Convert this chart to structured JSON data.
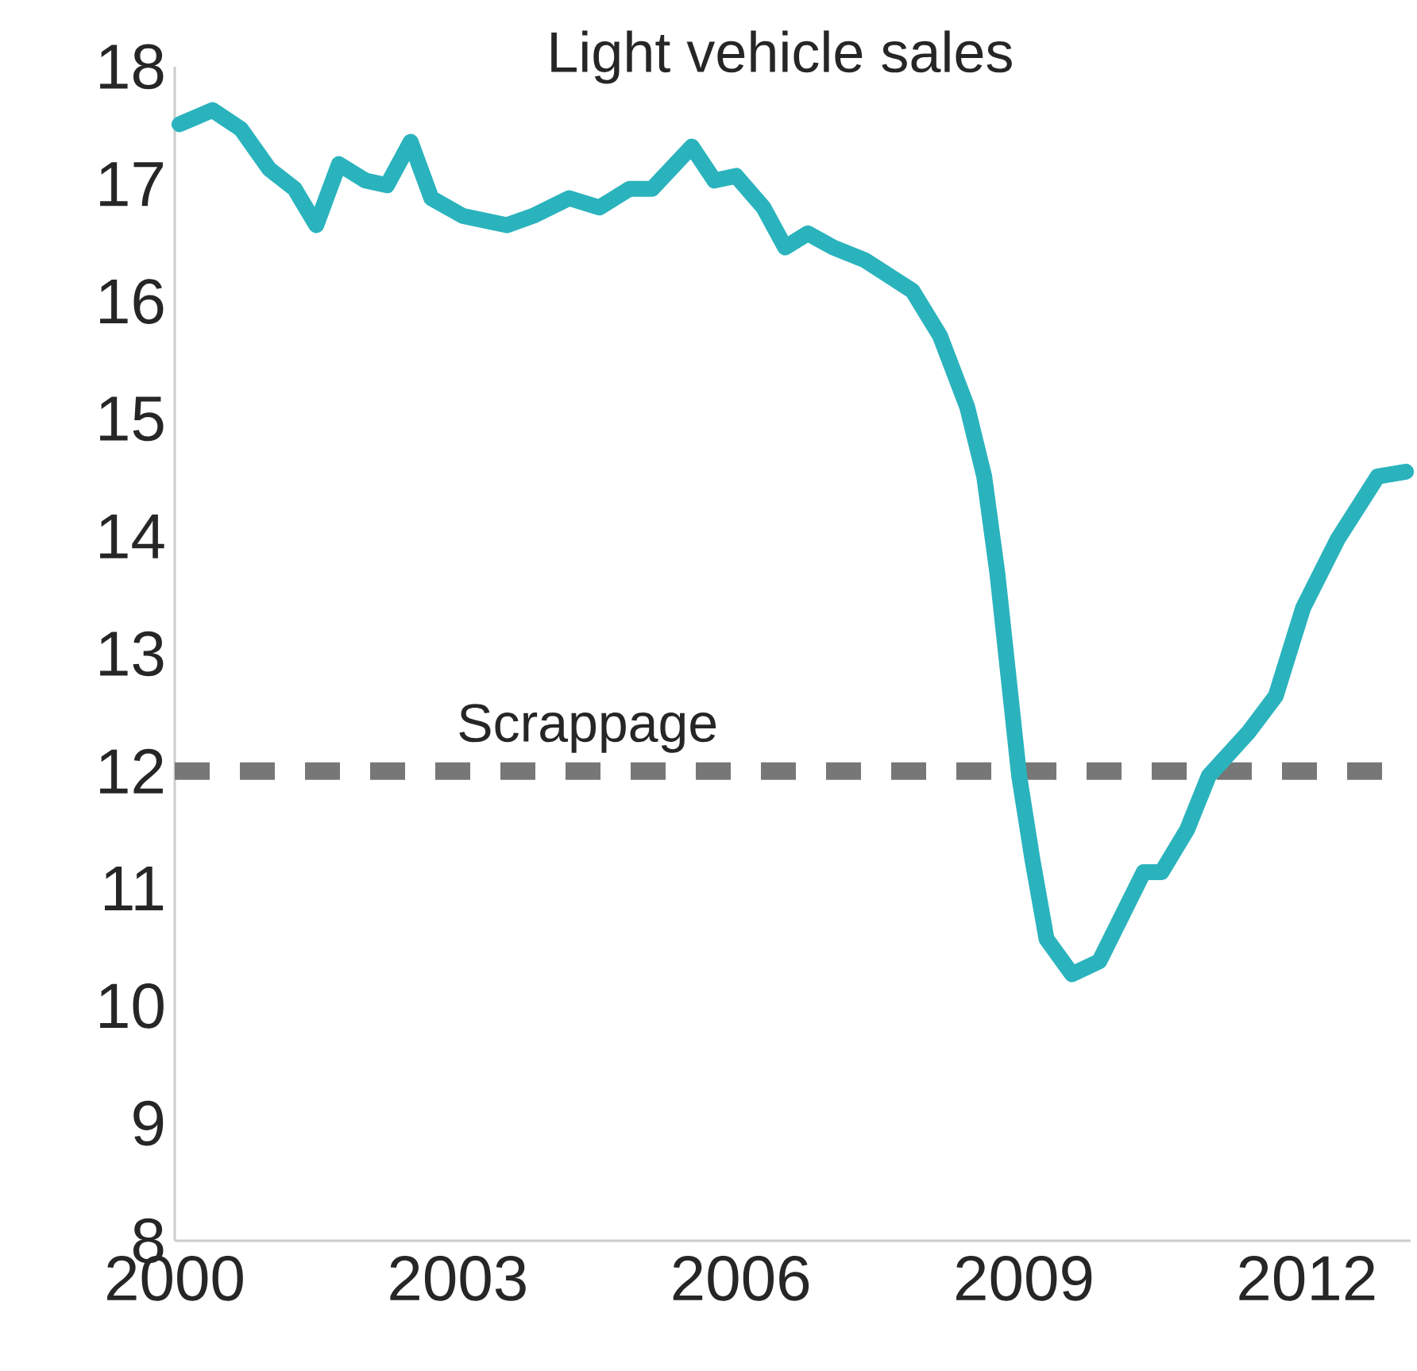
{
  "chart_data": {
    "type": "line",
    "title": "Light vehicle sales",
    "x": [
      2000.05,
      2000.4,
      2000.7,
      2001.0,
      2001.27,
      2001.5,
      2001.74,
      2002.02,
      2002.25,
      2002.5,
      2002.72,
      2003.05,
      2003.52,
      2003.8,
      2004.18,
      2004.5,
      2004.82,
      2005.06,
      2005.48,
      2005.72,
      2005.95,
      2006.24,
      2006.47,
      2006.71,
      2006.98,
      2007.32,
      2007.82,
      2008.11,
      2008.4,
      2008.58,
      2008.72,
      2008.95,
      2009.09,
      2009.24,
      2009.51,
      2009.8,
      2010.27,
      2010.46,
      2010.73,
      2010.96,
      2011.38,
      2011.67,
      2011.96,
      2012.33,
      2012.75,
      2013.05
    ],
    "series": [
      {
        "color": "#2ab3bd",
        "values": [
          17.51,
          17.63,
          17.47,
          17.13,
          16.96,
          16.65,
          17.17,
          17.03,
          16.99,
          17.36,
          16.88,
          16.73,
          16.65,
          16.73,
          16.88,
          16.8,
          16.96,
          16.96,
          17.32,
          17.03,
          17.07,
          16.8,
          16.46,
          16.58,
          16.46,
          16.35,
          16.09,
          15.71,
          15.1,
          14.51,
          13.68,
          11.96,
          11.25,
          10.57,
          10.27,
          10.38,
          11.14,
          11.14,
          11.5,
          11.96,
          12.33,
          12.64,
          13.39,
          13.98,
          14.51,
          14.55
        ]
      }
    ],
    "xlim": [
      2000,
      2013.1
    ],
    "ylim": [
      8,
      18
    ],
    "xticks": [
      2000,
      2003,
      2006,
      2009,
      2012
    ],
    "yticks": [
      8,
      9,
      10,
      11,
      12,
      13,
      14,
      15,
      16,
      17,
      18
    ],
    "ref_lines": [
      {
        "axis": "y",
        "value": 12,
        "label": "Scrappage",
        "color": "#777777",
        "line_style": "dashed"
      }
    ]
  }
}
